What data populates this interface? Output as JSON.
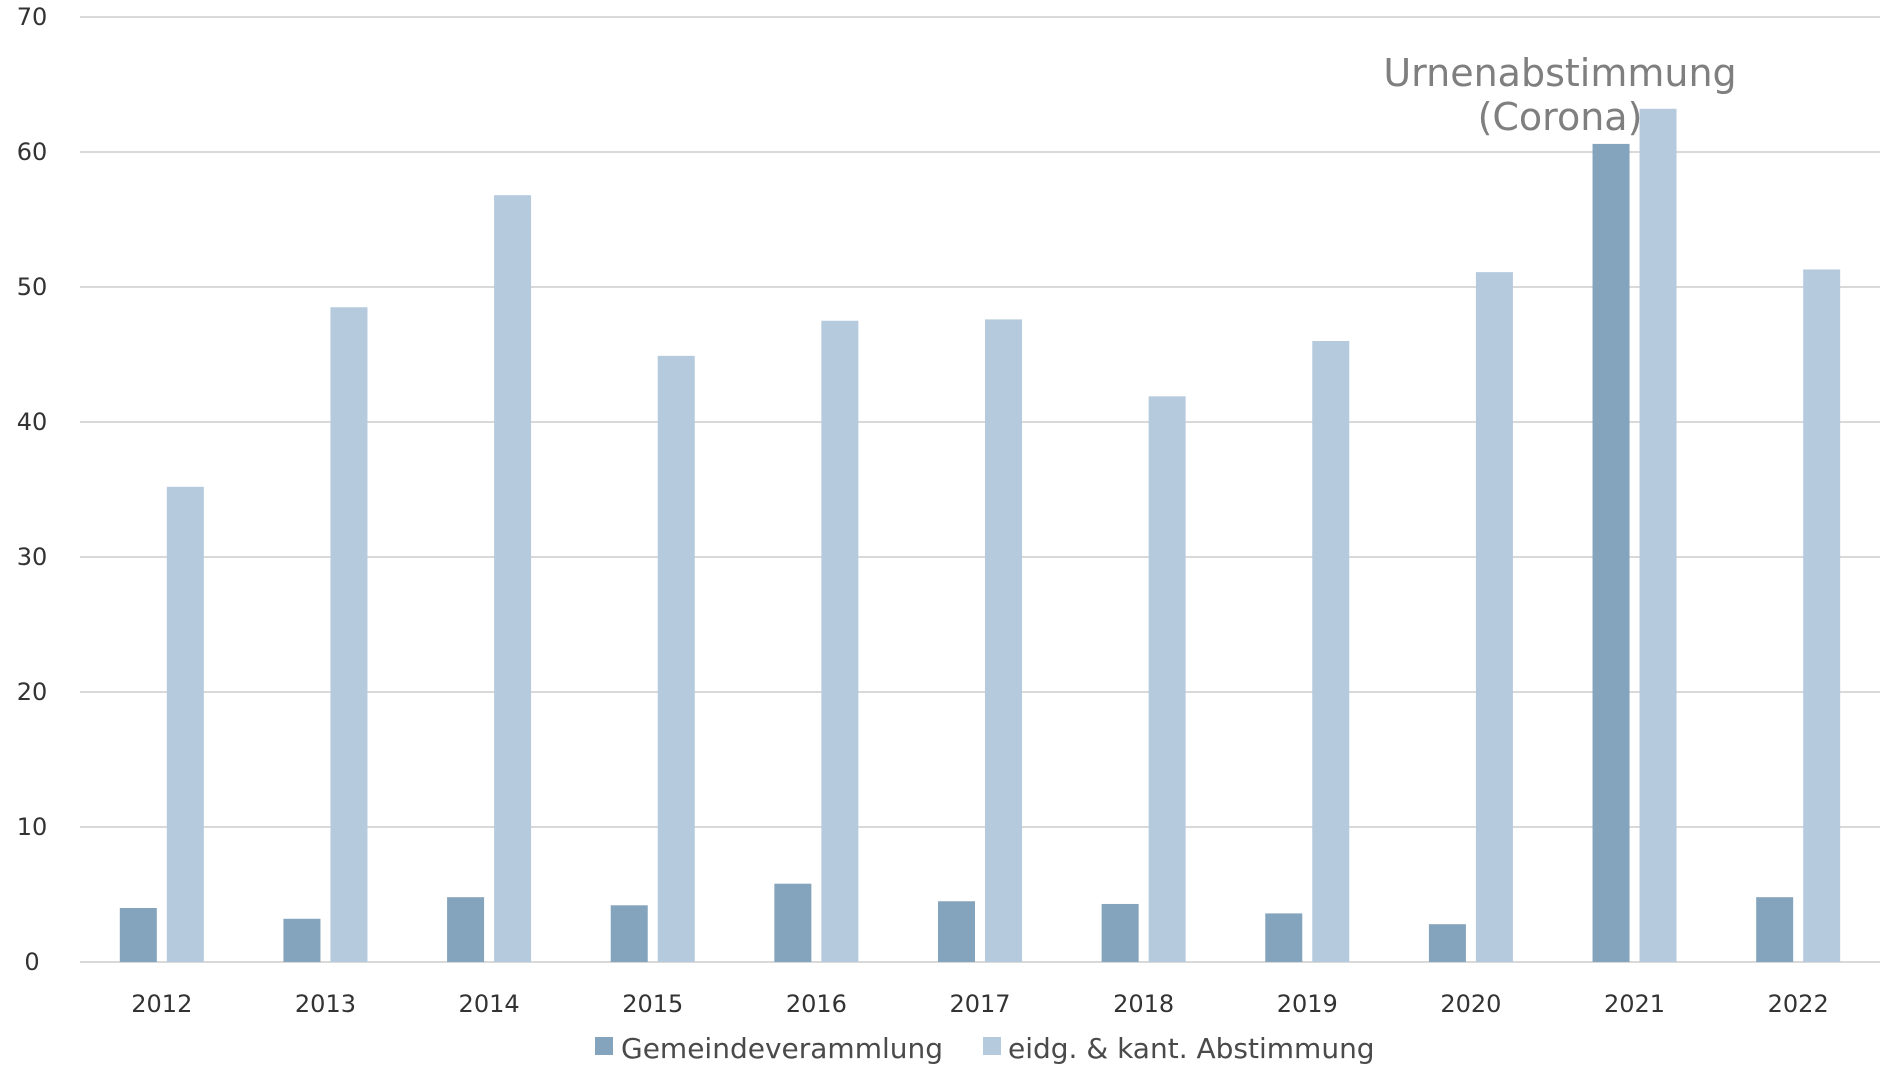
{
  "chart_data": {
    "type": "bar",
    "categories": [
      "2012",
      "2013",
      "2014",
      "2015",
      "2016",
      "2017",
      "2018",
      "2019",
      "2020",
      "2021",
      "2022"
    ],
    "series": [
      {
        "name": "Gemeindeverammlung",
        "color": "#84a3bc",
        "values": [
          4.0,
          3.2,
          4.8,
          4.2,
          5.8,
          4.5,
          4.3,
          3.6,
          2.8,
          60.6,
          4.8
        ]
      },
      {
        "name": "eidg. & kant. Abstimmung",
        "color": "#b5cadd",
        "values": [
          35.2,
          48.5,
          56.8,
          44.9,
          47.5,
          47.6,
          41.9,
          46.0,
          51.1,
          63.2,
          51.3
        ]
      }
    ],
    "ylim": [
      0,
      70
    ],
    "yticks": [
      "0",
      "10",
      "20",
      "30",
      "40",
      "50",
      "60",
      "70"
    ],
    "grid": true,
    "legend": "bottom-center",
    "annotation": {
      "lines": [
        "Urnenabstimmung",
        "(Corona)"
      ],
      "category": "2021"
    },
    "title": "",
    "xlabel": "",
    "ylabel": ""
  }
}
